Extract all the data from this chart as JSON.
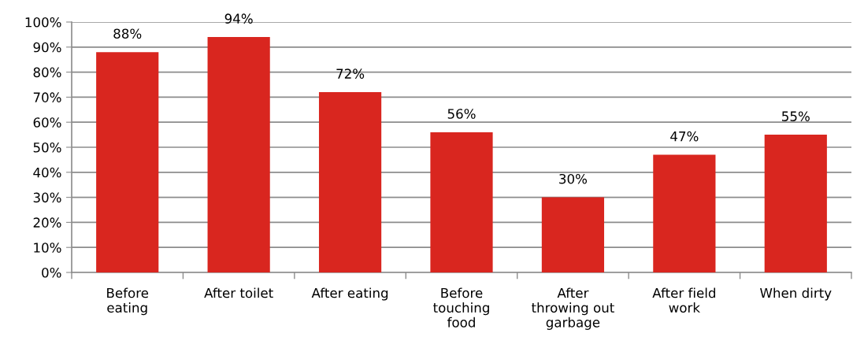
{
  "chart_data": {
    "type": "bar",
    "categories": [
      "Before\neating",
      "After toilet",
      "After eating",
      "Before\ntouching\nfood",
      "After\nthrowing out\ngarbage",
      "After field\nwork",
      "When dirty"
    ],
    "values": [
      88,
      94,
      72,
      56,
      30,
      47,
      55
    ],
    "value_labels": [
      "88%",
      "94%",
      "72%",
      "56%",
      "30%",
      "47%",
      "55%"
    ],
    "color": "#d9261f",
    "ylim": [
      0,
      100
    ],
    "yticks": [
      {
        "value": 0,
        "label": "0%"
      },
      {
        "value": 10,
        "label": "10%"
      },
      {
        "value": 20,
        "label": "20%"
      },
      {
        "value": 30,
        "label": "30%"
      },
      {
        "value": 40,
        "label": "40%"
      },
      {
        "value": 50,
        "label": "50%"
      },
      {
        "value": 60,
        "label": "60%"
      },
      {
        "value": 70,
        "label": "70%"
      },
      {
        "value": 80,
        "label": "80%"
      },
      {
        "value": 90,
        "label": "90%"
      },
      {
        "value": 100,
        "label": "100%"
      }
    ],
    "grid": "y",
    "legend": false
  }
}
